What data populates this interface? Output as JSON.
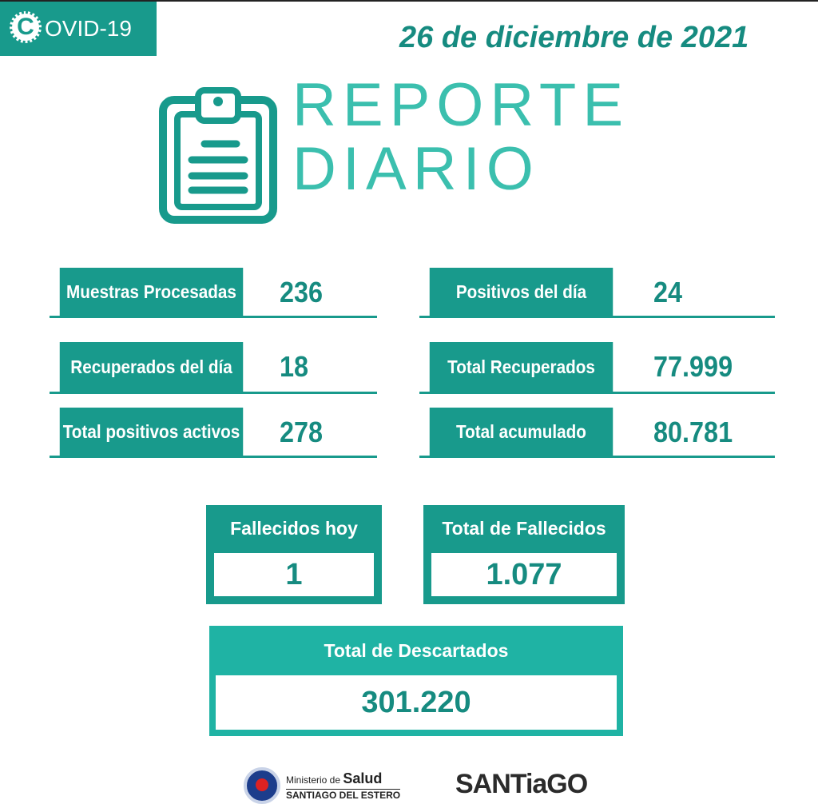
{
  "badge": {
    "icon_letter": "C",
    "text": "OVID-19"
  },
  "date": "26 de diciembre de 2021",
  "title": [
    "REPORTE",
    "DIARIO"
  ],
  "stats": [
    {
      "label": "Muestras Procesadas",
      "value": "236"
    },
    {
      "label": "Positivos del día",
      "value": "24"
    },
    {
      "label": "Recuperados del día",
      "value": "18"
    },
    {
      "label": "Total Recuperados",
      "value": "77.999"
    },
    {
      "label": "Total positivos activos",
      "value": "278"
    },
    {
      "label": "Total acumulado",
      "value": "80.781"
    }
  ],
  "deaths": [
    {
      "label": "Fallecidos hoy",
      "value": "1"
    },
    {
      "label": "Total de Fallecidos",
      "value": "1.077"
    }
  ],
  "discarded": {
    "label": "Total de Descartados",
    "value": "301.220"
  },
  "footer": {
    "ministry": "Ministerio de",
    "ministry_bold": "Salud",
    "province": "SANTIAGO DEL ESTERO",
    "brand": "SANTiaGO"
  }
}
